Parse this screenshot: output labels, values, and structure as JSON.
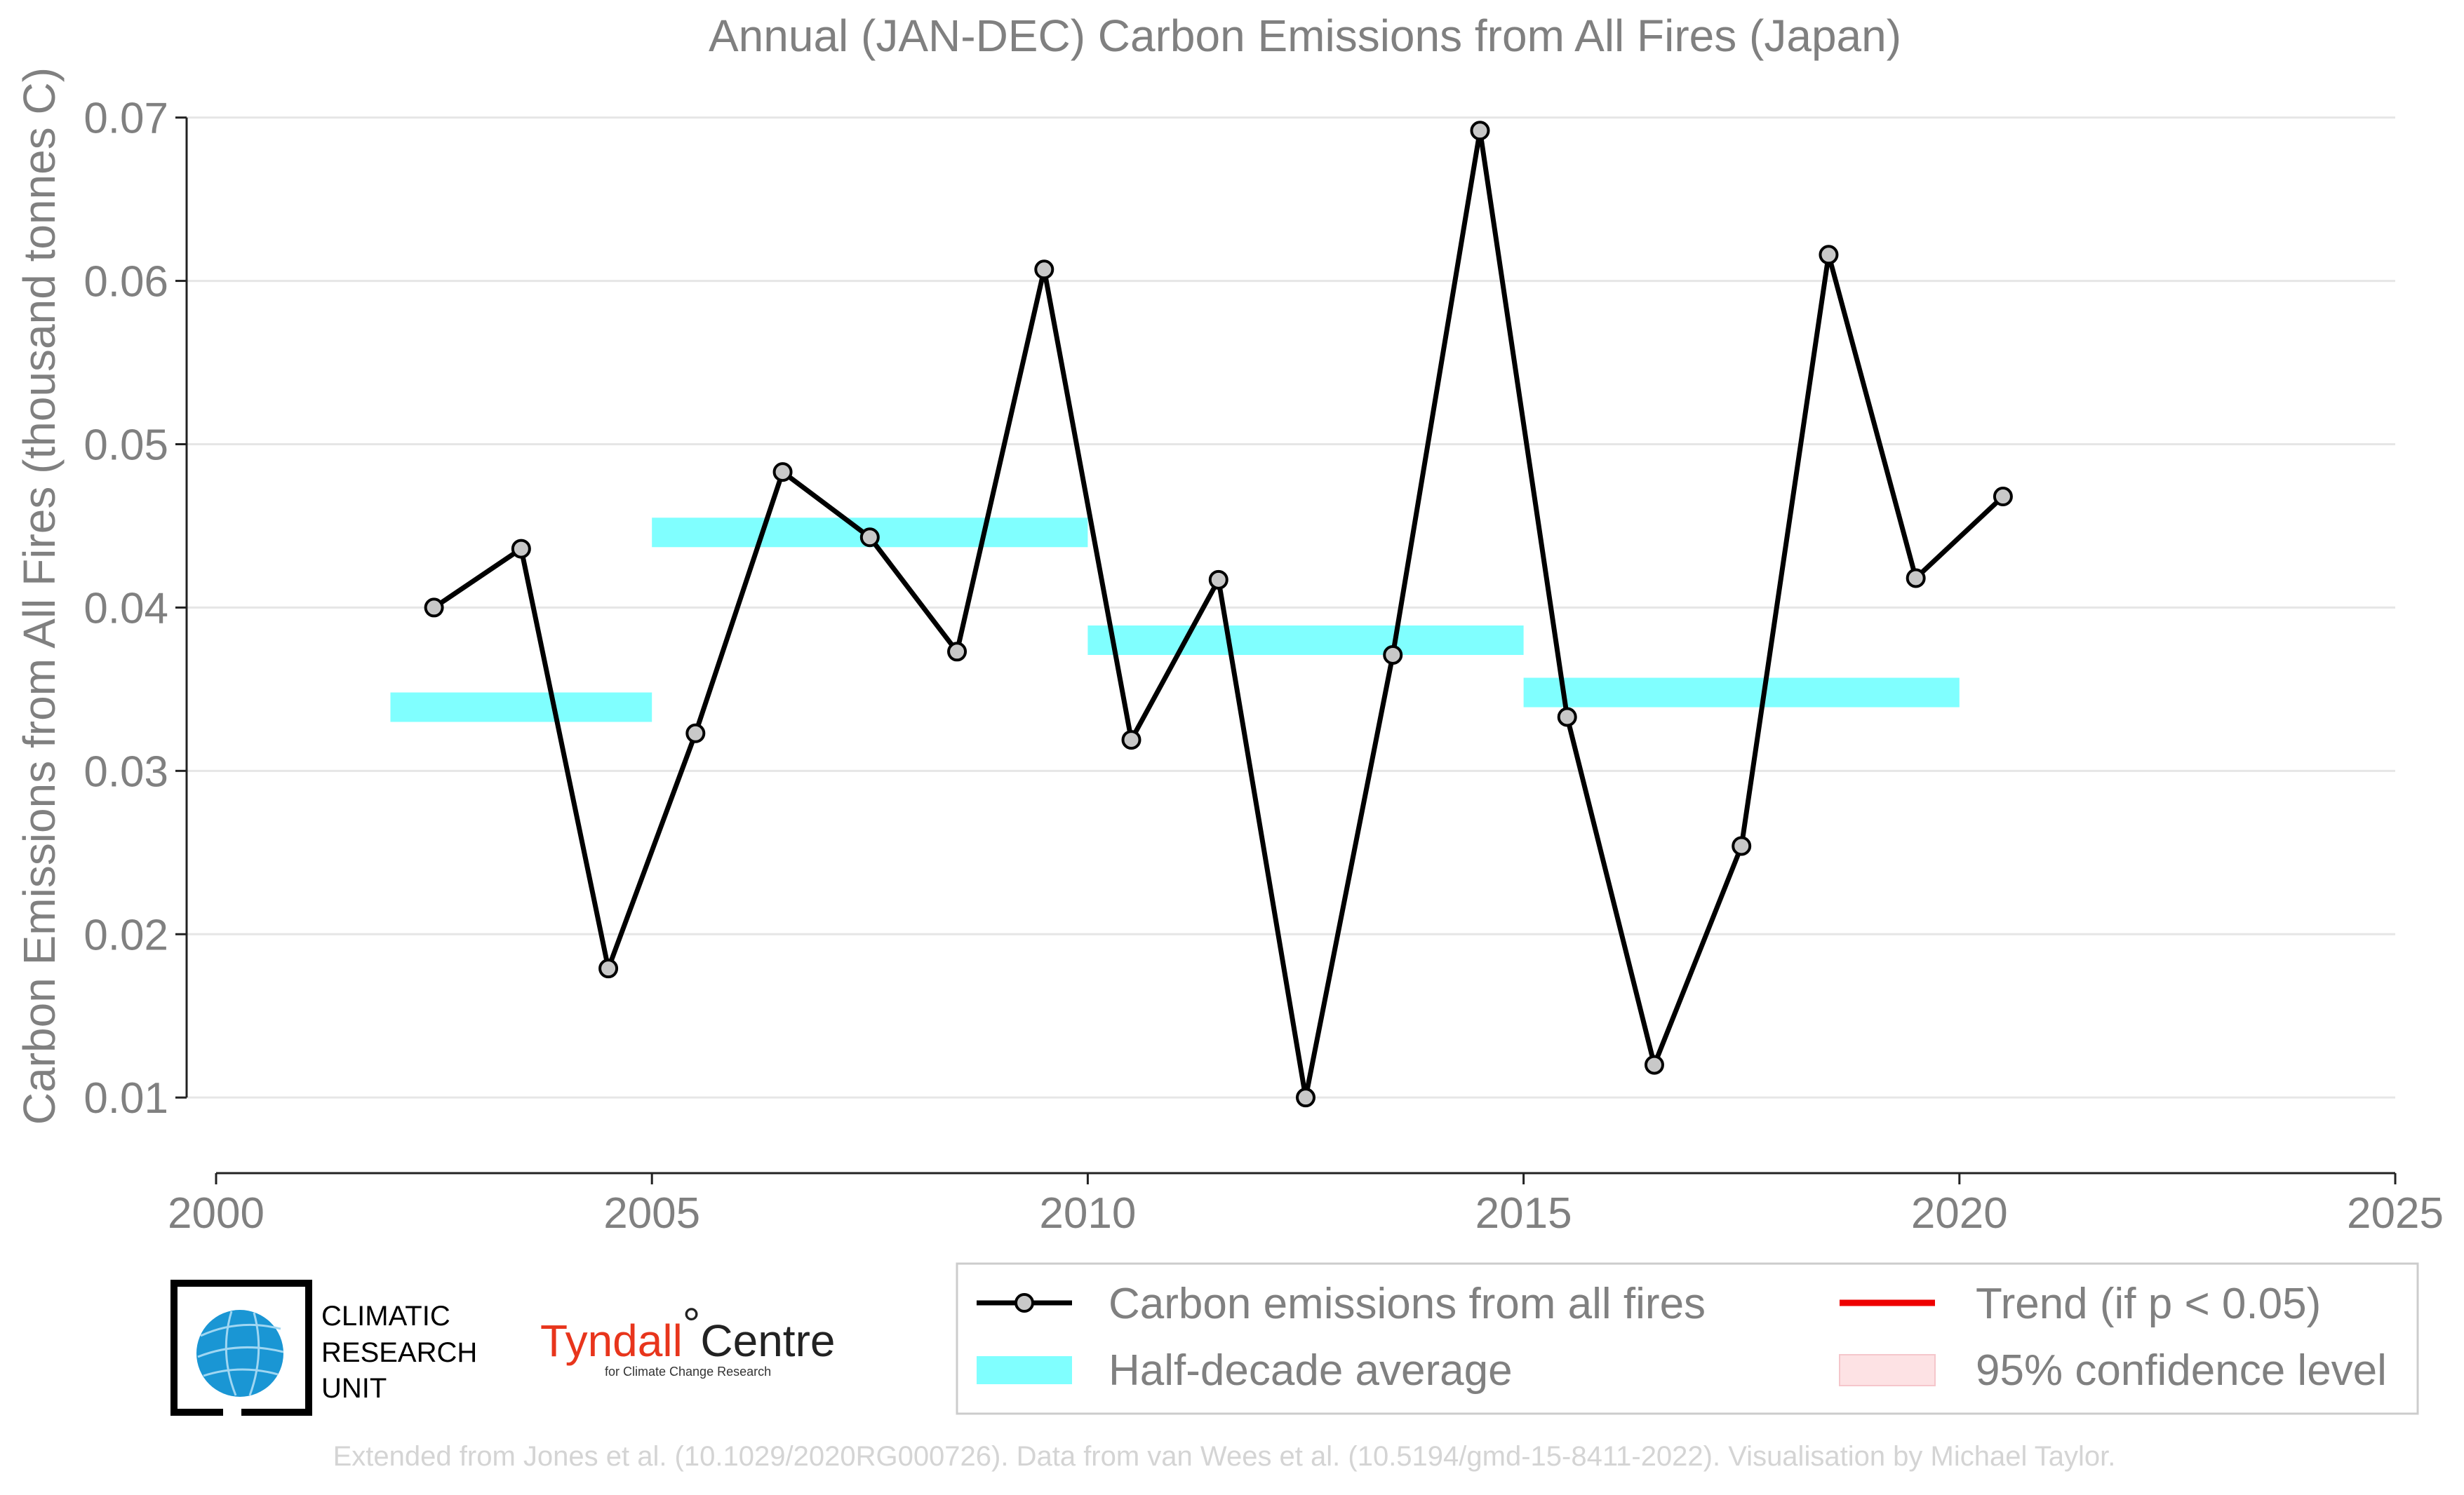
{
  "chart_data": {
    "type": "line",
    "title": "Annual (JAN-DEC) Carbon Emissions from All Fires (Japan)",
    "xlabel": "",
    "ylabel": "Carbon Emissions from All Fires (thousand tonnes C)",
    "xlim": [
      2000,
      2025
    ],
    "ylim": [
      0.0055,
      0.0705
    ],
    "x_ticks": [
      2000,
      2005,
      2010,
      2015,
      2020,
      2025
    ],
    "x_tick_labels": [
      "2000",
      "2005",
      "2010",
      "2015",
      "2020",
      "2025"
    ],
    "y_ticks": [
      0.01,
      0.02,
      0.03,
      0.04,
      0.05,
      0.06,
      0.07
    ],
    "y_tick_labels": [
      "0.01",
      "0.02",
      "0.03",
      "0.04",
      "0.05",
      "0.06",
      "0.07"
    ],
    "grid": "horizontal",
    "series": [
      {
        "name": "Carbon emissions from all fires",
        "color": "#000000",
        "marker_fill": "#c8c8c8",
        "x": [
          2002.5,
          2003.5,
          2004.5,
          2005.5,
          2006.5,
          2007.5,
          2008.5,
          2009.5,
          2010.5,
          2011.5,
          2012.5,
          2013.5,
          2014.5,
          2015.5,
          2016.5,
          2017.5,
          2018.5,
          2019.5,
          2020.5
        ],
        "y": [
          0.04,
          0.0436,
          0.0179,
          0.0323,
          0.0483,
          0.0443,
          0.0373,
          0.0607,
          0.0319,
          0.0417,
          0.01,
          0.0371,
          0.0692,
          0.0333,
          0.012,
          0.0254,
          0.0616,
          0.0418,
          0.0468
        ]
      }
    ],
    "half_decade_average": {
      "name": "Half-decade average",
      "color": "#80ffff",
      "segments": [
        {
          "x_start": 2002,
          "x_end": 2005,
          "y": 0.0339
        },
        {
          "x_start": 2005,
          "x_end": 2010,
          "y": 0.0446
        },
        {
          "x_start": 2010,
          "x_end": 2015,
          "y": 0.038
        },
        {
          "x_start": 2015,
          "x_end": 2020,
          "y": 0.0348
        }
      ]
    },
    "legend": {
      "placement": "bottom-right",
      "entries": [
        {
          "label": "Carbon emissions from all fires",
          "kind": "line-marker",
          "color": "#000000"
        },
        {
          "label": "Half-decade average",
          "kind": "band",
          "color": "#80ffff"
        },
        {
          "label": "Trend (if p < 0.05)",
          "kind": "line",
          "color": "#ee0000"
        },
        {
          "label": "95% confidence level",
          "kind": "patch",
          "color": "#fde2e4"
        }
      ]
    }
  },
  "logos": {
    "cru": {
      "line1": "CLIMATIC",
      "line2": "RESEARCH",
      "line3": "UNIT",
      "icon": "globe-icon"
    },
    "tyndall": {
      "main_red": "Tyndall",
      "degree": "°",
      "main_dark": "Centre",
      "sub": "for Climate Change Research"
    }
  },
  "credit": "Extended from Jones et al. (10.1029/2020RG000726). Data from van Wees et al. (10.5194/gmd-15-8411-2022). Visualisation by Michael Taylor."
}
